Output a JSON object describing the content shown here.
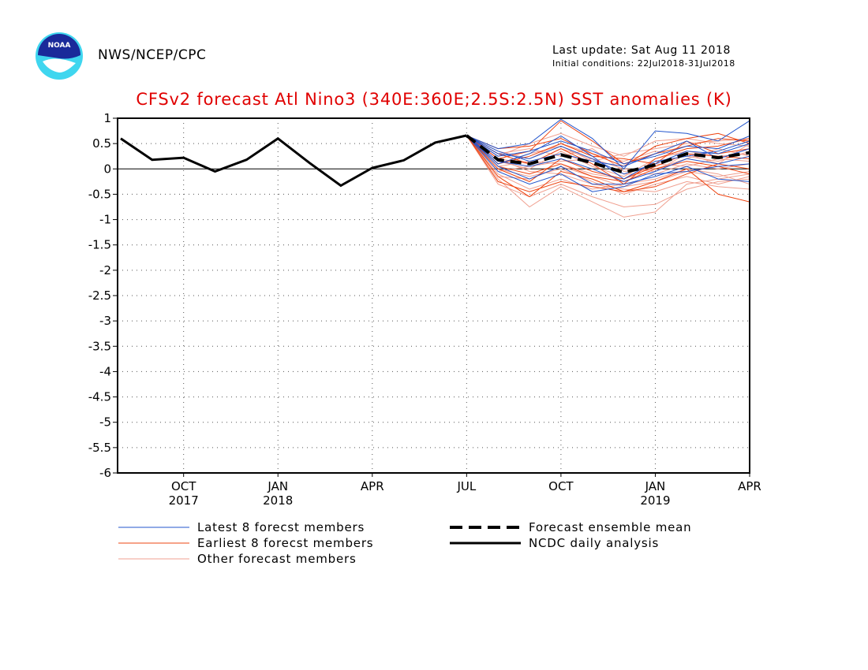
{
  "header": {
    "org": "NWS/NCEP/CPC",
    "last_update": "Last update: Sat Aug 11 2018",
    "initial_conditions": "Initial conditions: 22Jul2018-31Jul2018",
    "logo_text": "NOAA"
  },
  "colors": {
    "title": "#e00000",
    "latest": "#2255cc",
    "earliest": "#ee4411",
    "other": "#f0a090",
    "analysis": "#000000"
  },
  "chart_data": {
    "type": "line",
    "title": "CFSv2 forecast Atl Nino3 (340E:360E;2.5S:2.5N) SST anomalies (K)",
    "ylim": [
      -6,
      1
    ],
    "yticks": [
      "1",
      "0.5",
      "0",
      "-0.5",
      "-1",
      "-1.5",
      "-2",
      "-2.5",
      "-3",
      "-3.5",
      "-4",
      "-4.5",
      "-5",
      "-5.5",
      "-6"
    ],
    "xlim": [
      "2017-08",
      "2019-04"
    ],
    "x_ticks": [
      {
        "month": "OCT",
        "year": "2017",
        "date": "2017-10"
      },
      {
        "month": "JAN",
        "year": "2018",
        "date": "2018-01"
      },
      {
        "month": "APR",
        "year": "",
        "date": "2018-04"
      },
      {
        "month": "JUL",
        "year": "",
        "date": "2018-07"
      },
      {
        "month": "OCT",
        "year": "",
        "date": "2018-10"
      },
      {
        "month": "JAN",
        "year": "2019",
        "date": "2019-01"
      },
      {
        "month": "APR",
        "year": "",
        "date": "2019-04"
      }
    ],
    "grid": true,
    "legend": [
      {
        "label": "Latest 8 forecst members",
        "style": "thin-blue"
      },
      {
        "label": "Earliest 8 forecst members",
        "style": "thin-orange"
      },
      {
        "label": "Other forecast members",
        "style": "thin-pink"
      },
      {
        "label": "Forecast ensemble mean",
        "style": "thick-dashed-black"
      },
      {
        "label": "NCDC daily analysis",
        "style": "thick-solid-black"
      }
    ],
    "series": [
      {
        "name": "NCDC daily analysis",
        "x": [
          "2017-08",
          "2017-09",
          "2017-10",
          "2017-11",
          "2017-12",
          "2018-01",
          "2018-02",
          "2018-03",
          "2018-04",
          "2018-05",
          "2018-06",
          "2018-07"
        ],
        "values": [
          0.6,
          0.18,
          0.22,
          -0.05,
          0.18,
          0.6,
          0.12,
          -0.33,
          0.02,
          0.17,
          0.52,
          0.66
        ]
      },
      {
        "name": "Forecast ensemble mean",
        "x": [
          "2018-07",
          "2018-08",
          "2018-09",
          "2018-10",
          "2018-11",
          "2018-12",
          "2019-01",
          "2019-02",
          "2019-03",
          "2019-04"
        ],
        "values": [
          0.66,
          0.18,
          0.1,
          0.28,
          0.12,
          -0.07,
          0.08,
          0.3,
          0.22,
          0.32
        ]
      },
      {
        "name": "Latest 8 forecst members",
        "x": [
          "2018-07",
          "2018-08",
          "2018-09",
          "2018-10",
          "2018-11",
          "2018-12",
          "2019-01",
          "2019-02",
          "2019-03",
          "2019-04"
        ],
        "members": [
          [
            0.66,
            0.4,
            0.5,
            0.98,
            0.6,
            0.0,
            0.75,
            0.7,
            0.55,
            0.95
          ],
          [
            0.66,
            0.3,
            0.2,
            0.45,
            0.2,
            -0.1,
            0.1,
            0.35,
            0.3,
            0.5
          ],
          [
            0.66,
            0.15,
            0.05,
            0.2,
            0.0,
            -0.25,
            -0.05,
            0.2,
            0.1,
            0.25
          ],
          [
            0.66,
            0.05,
            -0.2,
            0.05,
            -0.3,
            -0.3,
            -0.15,
            0.05,
            -0.2,
            -0.25
          ],
          [
            0.66,
            0.25,
            0.35,
            0.55,
            0.35,
            0.1,
            0.25,
            0.45,
            0.4,
            0.65
          ],
          [
            0.66,
            -0.05,
            -0.3,
            -0.1,
            -0.45,
            -0.35,
            -0.1,
            -0.05,
            0.05,
            0.1
          ],
          [
            0.66,
            0.35,
            0.15,
            0.3,
            0.15,
            0.05,
            0.3,
            0.55,
            0.2,
            0.4
          ],
          [
            0.66,
            0.1,
            0.3,
            0.65,
            0.25,
            -0.2,
            0.15,
            0.25,
            0.35,
            0.55
          ]
        ]
      },
      {
        "name": "Earliest 8 forecst members",
        "x": [
          "2018-07",
          "2018-08",
          "2018-09",
          "2018-10",
          "2018-11",
          "2018-12",
          "2019-01",
          "2019-02",
          "2019-03",
          "2019-04"
        ],
        "members": [
          [
            0.66,
            0.2,
            0.35,
            0.95,
            0.55,
            0.1,
            0.3,
            0.45,
            0.6,
            0.55
          ],
          [
            0.66,
            -0.15,
            -0.55,
            -0.05,
            -0.2,
            -0.45,
            -0.25,
            0.0,
            -0.5,
            -0.65
          ],
          [
            0.66,
            0.4,
            0.45,
            0.6,
            0.3,
            0.05,
            0.45,
            0.6,
            0.7,
            0.5
          ],
          [
            0.66,
            0.0,
            -0.25,
            0.2,
            -0.05,
            -0.2,
            0.05,
            0.3,
            0.25,
            0.2
          ],
          [
            0.66,
            0.3,
            0.1,
            0.4,
            0.1,
            -0.3,
            0.2,
            0.4,
            0.45,
            0.6
          ],
          [
            0.66,
            -0.25,
            -0.45,
            -0.25,
            -0.35,
            -0.45,
            -0.35,
            -0.1,
            0.1,
            0.0
          ],
          [
            0.66,
            0.1,
            0.25,
            0.5,
            0.25,
            0.2,
            0.1,
            0.55,
            0.3,
            0.4
          ],
          [
            0.66,
            0.05,
            -0.1,
            0.1,
            -0.15,
            -0.25,
            0.0,
            0.15,
            0.05,
            -0.1
          ]
        ]
      },
      {
        "name": "Other forecast members",
        "x": [
          "2018-07",
          "2018-08",
          "2018-09",
          "2018-10",
          "2018-11",
          "2018-12",
          "2019-01",
          "2019-02",
          "2019-03",
          "2019-04"
        ],
        "members": [
          [
            0.66,
            -0.2,
            -0.75,
            -0.35,
            -0.65,
            -0.95,
            -0.85,
            -0.3,
            -0.2,
            -0.1
          ],
          [
            0.66,
            0.25,
            0.5,
            0.7,
            0.45,
            0.25,
            0.55,
            0.6,
            0.5,
            0.45
          ],
          [
            0.66,
            -0.1,
            -0.4,
            -0.2,
            -0.4,
            -0.3,
            -0.2,
            0.0,
            -0.1,
            -0.3
          ],
          [
            0.66,
            0.15,
            0.0,
            0.35,
            0.05,
            -0.15,
            0.2,
            0.35,
            0.25,
            0.3
          ],
          [
            0.66,
            0.3,
            0.4,
            0.25,
            0.4,
            -0.05,
            0.0,
            0.2,
            0.4,
            0.25
          ],
          [
            0.66,
            0.0,
            -0.15,
            0.0,
            -0.25,
            -0.5,
            -0.3,
            -0.15,
            -0.3,
            -0.15
          ],
          [
            0.66,
            0.35,
            0.2,
            0.5,
            0.3,
            0.15,
            0.35,
            0.25,
            0.15,
            0.35
          ],
          [
            0.66,
            -0.05,
            0.05,
            0.15,
            0.2,
            -0.1,
            -0.1,
            0.1,
            0.0,
            0.1
          ],
          [
            0.66,
            0.2,
            -0.05,
            -0.1,
            -0.3,
            -0.4,
            -0.45,
            -0.25,
            -0.35,
            -0.4
          ],
          [
            0.66,
            0.1,
            0.3,
            0.45,
            0.15,
            0.3,
            0.4,
            0.5,
            0.55,
            0.6
          ],
          [
            0.66,
            -0.3,
            -0.55,
            -0.3,
            -0.55,
            -0.75,
            -0.7,
            -0.4,
            -0.25,
            -0.2
          ],
          [
            0.66,
            0.05,
            0.15,
            0.1,
            -0.1,
            -0.2,
            0.1,
            0.05,
            0.2,
            0.15
          ],
          [
            0.66,
            0.2,
            0.1,
            0.4,
            0.2,
            0.0,
            -0.05,
            0.3,
            0.1,
            0.5
          ],
          [
            0.66,
            -0.15,
            -0.2,
            0.05,
            -0.15,
            -0.35,
            -0.25,
            -0.05,
            -0.15,
            -0.05
          ]
        ]
      }
    ]
  }
}
